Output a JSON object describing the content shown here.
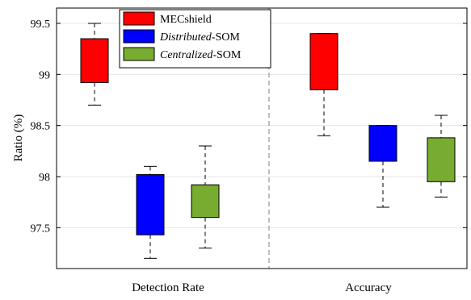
{
  "chart_data": {
    "type": "boxplot",
    "ylabel": "Ratio (%)",
    "ylim": [
      97.1,
      99.65
    ],
    "yticks": [
      "97.5",
      "98",
      "98.5",
      "99",
      "99.5"
    ],
    "yticks_values": [
      97.5,
      98,
      98.5,
      99,
      99.5
    ],
    "grid": true,
    "legend_position": "top-left",
    "groups": [
      "Detection Rate",
      "Accuracy"
    ],
    "series": [
      {
        "name": "MECshield",
        "name_parts": [
          {
            "text": "MECshield",
            "italic": false
          }
        ],
        "color": "#ff0000",
        "boxes": [
          {
            "min": 98.7,
            "q1": 98.92,
            "q3": 99.35,
            "max": 99.5
          },
          {
            "min": 98.4,
            "q1": 98.85,
            "q3": 99.4,
            "max": 99.4
          }
        ]
      },
      {
        "name": "Distributed-SOM",
        "name_parts": [
          {
            "text": "Distributed",
            "italic": true
          },
          {
            "text": "-SOM",
            "italic": false
          }
        ],
        "color": "#0000ff",
        "boxes": [
          {
            "min": 97.2,
            "q1": 97.43,
            "q3": 98.02,
            "max": 98.1
          },
          {
            "min": 97.7,
            "q1": 98.15,
            "q3": 98.5,
            "max": 98.5
          }
        ]
      },
      {
        "name": "Centralized-SOM",
        "name_parts": [
          {
            "text": "Centralized",
            "italic": true
          },
          {
            "text": "-SOM",
            "italic": false
          }
        ],
        "color": "#77ac30",
        "boxes": [
          {
            "min": 97.3,
            "q1": 97.6,
            "q3": 97.92,
            "max": 98.3
          },
          {
            "min": 97.8,
            "q1": 97.95,
            "q3": 98.38,
            "max": 98.6
          }
        ]
      }
    ]
  }
}
